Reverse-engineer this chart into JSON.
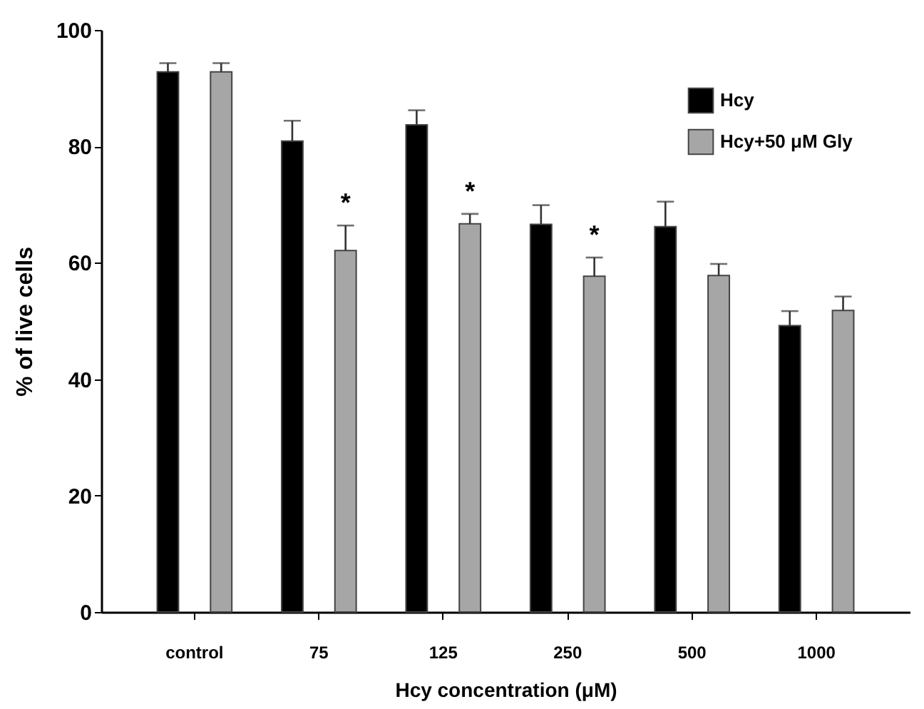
{
  "chart_data": {
    "type": "bar",
    "xlabel": "Hcy concentration (μM)",
    "ylabel": "% of live cells",
    "categories": [
      "control",
      "75",
      "125",
      "250",
      "500",
      "1000"
    ],
    "series": [
      {
        "name": "Hcy",
        "color": "#000000",
        "values": [
          92.8,
          80.9,
          83.7,
          66.6,
          66.2,
          49.2
        ],
        "errors": [
          [
            92.8,
            94.3
          ],
          [
            80.9,
            84.4
          ],
          [
            83.7,
            86.2
          ],
          [
            66.6,
            69.9
          ],
          [
            66.2,
            70.5
          ],
          [
            49.2,
            51.7
          ]
        ]
      },
      {
        "name": "Hcy+50 μM Gly",
        "color": "#a6a6a6",
        "values": [
          92.8,
          62.1,
          66.7,
          57.7,
          57.8,
          51.8
        ],
        "errors": [
          [
            92.8,
            94.3
          ],
          [
            62.1,
            66.4
          ],
          [
            66.7,
            68.4
          ],
          [
            57.7,
            60.9
          ],
          [
            57.8,
            59.8
          ],
          [
            51.8,
            54.2
          ]
        ],
        "value_labels": [
          null,
          "*",
          "*",
          "*",
          null,
          null
        ]
      }
    ],
    "ylim": [
      0,
      100
    ],
    "yticks": [
      0,
      20,
      40,
      60,
      80,
      100
    ],
    "grid": false,
    "legend": "top right"
  }
}
